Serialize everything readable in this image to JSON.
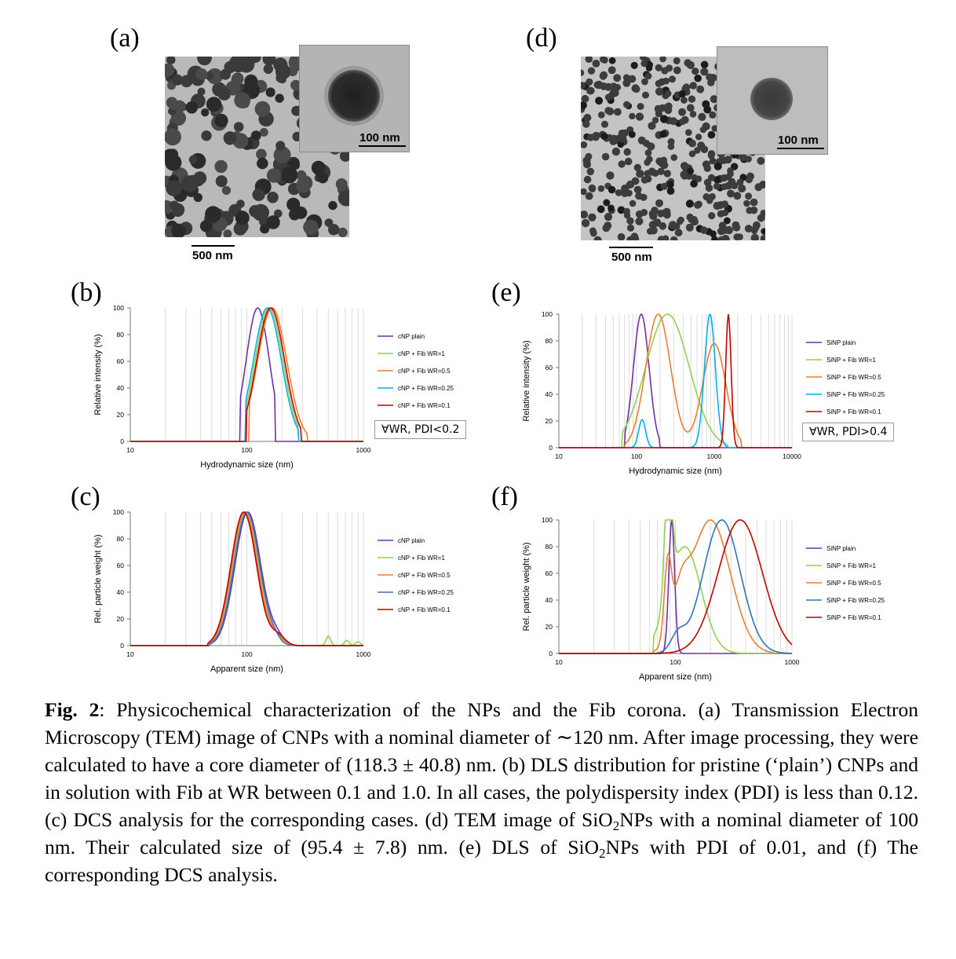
{
  "panels": {
    "a": "(a)",
    "b": "(b)",
    "c": "(c)",
    "d": "(d)",
    "e": "(e)",
    "f": "(f)"
  },
  "tem": {
    "a_inset_scale": "100 nm",
    "a_scale": "500 nm",
    "d_inset_scale": "100 nm",
    "d_scale": "500 nm"
  },
  "pdi_notes": {
    "b": "∀WR, PDI<0.2",
    "e": "∀WR, PDI>0.4"
  },
  "caption": {
    "fig_label": "Fig. 2",
    "p1": ": Physicochemical characterization of the NPs and the Fib corona. (a) Transmission Electron Microscopy (TEM) image of CNPs with a nominal diameter of ∼120 nm. After image processing, they were calculated to have a core diameter of (118.3 ± 40.8) nm. (b) DLS distribution for pristine (‘plain’) CNPs and in solution with Fib at WR between 0.1 and 1.0. In all cases, the polydispersity index (PDI) is less than 0.12. (c) DCS analysis for the corresponding cases. (d) TEM image of SiO",
    "sub1": "2",
    "p2": "NPs with a nominal diameter of 100 nm. Their calculated size of (95.4 ± 7.8) nm. (e) DLS of SiO",
    "sub2": "2",
    "p3": "NPs with PDI of 0.01, and (f) The corresponding DCS analysis."
  },
  "chart_data": [
    {
      "panel": "b",
      "type": "line",
      "xlabel": "Hydrodynamic size (nm)",
      "ylabel": "Relative intensity (%)",
      "xscale": "log",
      "xlim": [
        10,
        1000
      ],
      "ylim": [
        0,
        100
      ],
      "xticks": [
        "10",
        "100",
        "1000"
      ],
      "yticks": [
        "0",
        "20",
        "40",
        "60",
        "80",
        "100"
      ],
      "legend_position": "right",
      "series": [
        {
          "name": "cNP plain",
          "color": "#7030a0",
          "peaks": [
            {
              "center": 124,
              "sigma": 0.1,
              "amp": 100
            }
          ],
          "range": [
            88,
            175
          ]
        },
        {
          "name": "cNP + Fib WR=1",
          "color": "#92d050",
          "peaks": [
            {
              "center": 155,
              "sigma": 0.12,
              "amp": 100
            }
          ],
          "range": [
            98,
            275
          ]
        },
        {
          "name": "cNP + Fib WR=0.5",
          "color": "#ed7d31",
          "peaks": [
            {
              "center": 165,
              "sigma": 0.125,
              "amp": 100
            }
          ],
          "range": [
            105,
            330
          ]
        },
        {
          "name": "cNP + Fib WR=0.25",
          "color": "#00b0f0",
          "peaks": [
            {
              "center": 150,
              "sigma": 0.12,
              "amp": 100
            }
          ],
          "range": [
            98,
            275
          ]
        },
        {
          "name": "cNP + Fib WR=0.1",
          "color": "#c00000",
          "peaks": [
            {
              "center": 160,
              "sigma": 0.12,
              "amp": 100
            }
          ],
          "range": [
            100,
            290
          ]
        }
      ]
    },
    {
      "panel": "c",
      "type": "line",
      "xlabel": "Apparent size (nm)",
      "ylabel": "Rel. particle weight (%)",
      "xscale": "log",
      "xlim": [
        10,
        1000
      ],
      "ylim": [
        0,
        100
      ],
      "xticks": [
        "10",
        "100",
        "1000"
      ],
      "yticks": [
        "0",
        "20",
        "40",
        "60",
        "80",
        "100"
      ],
      "legend_position": "right",
      "series": [
        {
          "name": "cNP plain",
          "color": "#7030a0",
          "peaks": [
            {
              "center": 102,
              "sigma": 0.11,
              "amp": 100
            },
            {
              "center": 180,
              "sigma": 0.06,
              "amp": 6
            }
          ],
          "range": [
            48,
            300
          ]
        },
        {
          "name": "cNP + Fib WR=1",
          "color": "#92d050",
          "peaks": [
            {
              "center": 98,
              "sigma": 0.11,
              "amp": 100
            },
            {
              "center": 175,
              "sigma": 0.06,
              "amp": 5
            },
            {
              "center": 500,
              "sigma": 0.02,
              "amp": 7
            },
            {
              "center": 720,
              "sigma": 0.02,
              "amp": 4
            },
            {
              "center": 900,
              "sigma": 0.02,
              "amp": 3
            }
          ],
          "range": [
            48,
            1000
          ]
        },
        {
          "name": "cNP + Fib WR=0.5",
          "color": "#ed7d31",
          "peaks": [
            {
              "center": 96,
              "sigma": 0.11,
              "amp": 100
            },
            {
              "center": 180,
              "sigma": 0.06,
              "amp": 6
            }
          ],
          "range": [
            46,
            320
          ]
        },
        {
          "name": "cNP + Fib WR=0.25",
          "color": "#4472c4",
          "peaks": [
            {
              "center": 100,
              "sigma": 0.11,
              "amp": 100
            },
            {
              "center": 170,
              "sigma": 0.05,
              "amp": 4
            }
          ],
          "range": [
            48,
            280
          ]
        },
        {
          "name": "cNP + Fib WR=0.1",
          "color": "#c00000",
          "peaks": [
            {
              "center": 94,
              "sigma": 0.11,
              "amp": 100
            },
            {
              "center": 185,
              "sigma": 0.06,
              "amp": 7
            }
          ],
          "range": [
            46,
            330
          ]
        }
      ]
    },
    {
      "panel": "e",
      "type": "line",
      "xlabel": "Hydrodynamic size (nm)",
      "ylabel": "Relative intensity (%)",
      "xscale": "log",
      "xlim": [
        10,
        10000
      ],
      "ylim": [
        0,
        100
      ],
      "xticks": [
        "10",
        "100",
        "1000",
        "10000"
      ],
      "yticks": [
        "0",
        "20",
        "40",
        "60",
        "80",
        "100"
      ],
      "legend_position": "right",
      "series": [
        {
          "name": "SiNP plain",
          "color": "#7030a0",
          "peaks": [
            {
              "center": 115,
              "sigma": 0.1,
              "amp": 100
            }
          ],
          "range": [
            70,
            200
          ]
        },
        {
          "name": "SiNP + Fib WR=1",
          "color": "#92d050",
          "peaks": [
            {
              "center": 250,
              "sigma": 0.28,
              "amp": 100
            }
          ],
          "range": [
            65,
            1500
          ]
        },
        {
          "name": "SiNP + Fib WR=0.5",
          "color": "#ed7d31",
          "peaks": [
            {
              "center": 190,
              "sigma": 0.16,
              "amp": 100
            },
            {
              "center": 1000,
              "sigma": 0.15,
              "amp": 78
            }
          ],
          "range": [
            70,
            2200
          ]
        },
        {
          "name": "SiNP + Fib WR=0.25",
          "color": "#00b0f0",
          "peaks": [
            {
              "center": 118,
              "sigma": 0.045,
              "amp": 21
            },
            {
              "center": 880,
              "sigma": 0.07,
              "amp": 100
            }
          ],
          "range": [
            85,
            10000
          ]
        },
        {
          "name": "SiNP + Fib WR=0.1",
          "color": "#c00000",
          "peaks": [
            {
              "center": 1520,
              "sigma": 0.035,
              "amp": 100
            }
          ],
          "range": [
            1150,
            2000
          ]
        }
      ]
    },
    {
      "panel": "f",
      "type": "line",
      "xlabel": "Apparent size (nm)",
      "ylabel": "Rel. particle weight (%)",
      "xscale": "log",
      "xlim": [
        10,
        1000
      ],
      "ylim": [
        0,
        100
      ],
      "xticks": [
        "10",
        "100",
        "1000"
      ],
      "yticks": [
        "0",
        "20",
        "40",
        "60",
        "80",
        "100"
      ],
      "legend_position": "right",
      "series": [
        {
          "name": "SiNP plain",
          "color": "#7030a0",
          "peaks": [
            {
              "center": 93,
              "sigma": 0.025,
              "amp": 100
            }
          ],
          "range": [
            70,
            140
          ]
        },
        {
          "name": "SiNP + Fib WR=1",
          "color": "#92d050",
          "peaks": [
            {
              "center": 87,
              "sigma": 0.03,
              "amp": 95
            },
            {
              "center": 120,
              "sigma": 0.14,
              "amp": 80
            }
          ],
          "range": [
            65,
            500
          ]
        },
        {
          "name": "SiNP + Fib WR=0.5",
          "color": "#ed7d31",
          "peaks": [
            {
              "center": 86,
              "sigma": 0.03,
              "amp": 55
            },
            {
              "center": 200,
              "sigma": 0.17,
              "amp": 100
            },
            {
              "center": 110,
              "sigma": 0.07,
              "amp": 30
            }
          ],
          "range": [
            65,
            700
          ]
        },
        {
          "name": "SiNP + Fib WR=0.25",
          "color": "#2e75b6",
          "peaks": [
            {
              "center": 250,
              "sigma": 0.16,
              "amp": 100
            },
            {
              "center": 105,
              "sigma": 0.06,
              "amp": 12
            }
          ],
          "range": [
            70,
            1000
          ]
        },
        {
          "name": "SiNP + Fib WR=0.1",
          "color": "#c00000",
          "peaks": [
            {
              "center": 360,
              "sigma": 0.19,
              "amp": 100
            }
          ],
          "range": [
            75,
            1000
          ]
        }
      ]
    }
  ]
}
